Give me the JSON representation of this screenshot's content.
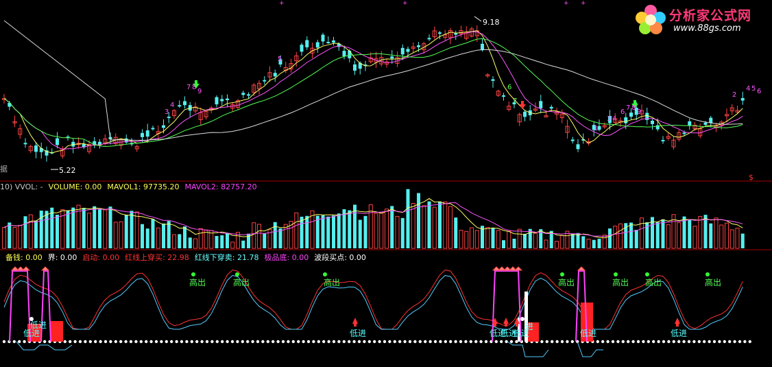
{
  "logo": {
    "brand": "分析家公式网",
    "url": "www.88gs.com"
  },
  "price_panel": {
    "left_label": "据",
    "high_label": "9.18",
    "low_label": "5.22",
    "corner_glyph": "$"
  },
  "volume_panel": {
    "header": [
      {
        "text": "10) VVOL: -",
        "color": "#c8c8c8"
      },
      {
        "text": "VOLUME: 0.00",
        "color": "#ffff55"
      },
      {
        "text": "MAVOL1: 97735.20",
        "color": "#ffff55"
      },
      {
        "text": "MAVOL2: 82757.20",
        "color": "#ff44ff"
      }
    ]
  },
  "signal_panel": {
    "header": [
      {
        "text": "备钱: 0.00",
        "color": "#ffff55"
      },
      {
        "text": "界: 0.00",
        "color": "#ffffff"
      },
      {
        "text": "启动: 0.00",
        "color": "#ff3333"
      },
      {
        "text": "红线上穿买: 22.98",
        "color": "#ff3333"
      },
      {
        "text": "红线下穿卖: 21.78",
        "color": "#66ffff"
      },
      {
        "text": "极品底: 0.00",
        "color": "#ff44ff"
      },
      {
        "text": "波段买点: 0.00",
        "color": "#ffffff"
      }
    ],
    "labels": [
      {
        "text": "高出",
        "x": 288,
        "y": 416,
        "color": "#55ff55"
      },
      {
        "text": "高出",
        "x": 352,
        "y": 416,
        "color": "#55ff55"
      },
      {
        "text": "高出",
        "x": 484,
        "y": 416,
        "color": "#55ff55"
      },
      {
        "text": "高出",
        "x": 826,
        "y": 416,
        "color": "#55ff55"
      },
      {
        "text": "高出",
        "x": 905,
        "y": 416,
        "color": "#55ff55"
      },
      {
        "text": "高出",
        "x": 953,
        "y": 416,
        "color": "#55ff55"
      },
      {
        "text": "高出",
        "x": 1040,
        "y": 416,
        "color": "#55ff55"
      },
      {
        "text": "低进",
        "x": 56,
        "y": 478,
        "color": "#55ffff"
      },
      {
        "text": "低进",
        "x": 46,
        "y": 490,
        "color": "#55ffff"
      },
      {
        "text": "低进",
        "x": 522,
        "y": 490,
        "color": "#55ffff"
      },
      {
        "text": "低进",
        "x": 726,
        "y": 490,
        "color": "#55ffff"
      },
      {
        "text": "低进",
        "x": 742,
        "y": 490,
        "color": "#55ffff"
      },
      {
        "text": "低进",
        "x": 760,
        "y": 490,
        "color": "#55ffff"
      },
      {
        "text": "进",
        "x": 778,
        "y": 480,
        "color": "#55ffff"
      },
      {
        "text": "低进",
        "x": 858,
        "y": 490,
        "color": "#55ffff"
      },
      {
        "text": "低进",
        "x": 990,
        "y": 490,
        "color": "#55ffff"
      }
    ],
    "digit_markers": [
      {
        "text": "5",
        "x": 405,
        "y": 89,
        "color": "#ff55ff"
      },
      {
        "text": "7",
        "x": 272,
        "y": 130,
        "color": "#ff55ff"
      },
      {
        "text": "8",
        "x": 280,
        "y": 130,
        "color": "#ff55ff"
      },
      {
        "text": "9",
        "x": 288,
        "y": 136,
        "color": "#ff55ff"
      },
      {
        "text": "4",
        "x": 248,
        "y": 156,
        "color": "#ff55ff"
      },
      {
        "text": "3",
        "x": 240,
        "y": 166,
        "color": "#ff55ff"
      },
      {
        "text": "6",
        "x": 740,
        "y": 130,
        "color": "#55ff55"
      },
      {
        "text": "7",
        "x": 748,
        "y": 150,
        "color": "#55ff55"
      },
      {
        "text": "3",
        "x": 885,
        "y": 176,
        "color": "#ff55ff"
      },
      {
        "text": "4",
        "x": 893,
        "y": 176,
        "color": "#ff55ff"
      },
      {
        "text": "6",
        "x": 905,
        "y": 166,
        "color": "#ff55ff"
      },
      {
        "text": "7",
        "x": 913,
        "y": 160,
        "color": "#ff55ff"
      },
      {
        "text": "8",
        "x": 921,
        "y": 160,
        "color": "#ff55ff"
      },
      {
        "text": "9",
        "x": 929,
        "y": 166,
        "color": "#ff55ff"
      },
      {
        "text": "1",
        "x": 866,
        "y": 190,
        "color": "#ff55ff"
      },
      {
        "text": "2",
        "x": 1068,
        "y": 141,
        "color": "#ff55ff"
      },
      {
        "text": "4",
        "x": 1088,
        "y": 132,
        "color": "#ff55ff"
      },
      {
        "text": "5",
        "x": 1096,
        "y": 132,
        "color": "#ff55ff"
      },
      {
        "text": "6",
        "x": 1104,
        "y": 136,
        "color": "#ff55ff"
      }
    ]
  },
  "chart_data": [
    {
      "type": "candlestick",
      "title": "",
      "series": [
        {
          "name": "MA5",
          "color": "#ffff66"
        },
        {
          "name": "MA10",
          "color": "#ff55ff"
        },
        {
          "name": "MA20",
          "color": "#55ff55"
        },
        {
          "name": "MA60",
          "color": "#dddddd"
        }
      ],
      "ylim": [
        4.9,
        9.4
      ],
      "annotations": [
        {
          "text": "9.18",
          "value": 9.18
        },
        {
          "text": "5.22",
          "value": 5.22
        }
      ]
    },
    {
      "type": "bar",
      "title": "",
      "series": [
        {
          "name": "VOLUME",
          "color": "#66ffff"
        },
        {
          "name": "MAVOL1",
          "color": "#ffff66"
        },
        {
          "name": "MAVOL2",
          "color": "#ff55ff"
        }
      ]
    },
    {
      "type": "line",
      "title": "",
      "series": [
        {
          "name": "红线",
          "color": "#ff3333"
        },
        {
          "name": "蓝线",
          "color": "#55ccff"
        }
      ]
    }
  ]
}
